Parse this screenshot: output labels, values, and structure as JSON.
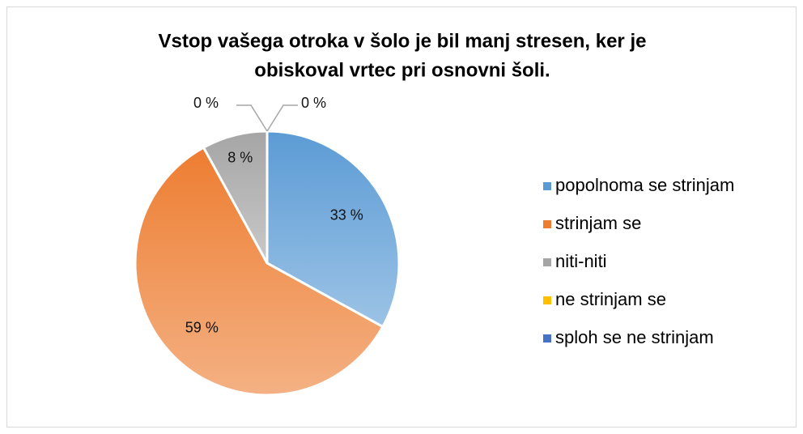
{
  "chart_data": {
    "type": "pie",
    "title": [
      "Vstop vašega otroka v šolo je bil manj stresen, ker je",
      "obiskoval vrtec pri osnovni šoli."
    ],
    "categories": [
      "popolnoma se strinjam",
      "strinjam se",
      "niti-niti",
      "ne strinjam se",
      "sploh se ne strinjam"
    ],
    "values": [
      33,
      59,
      8,
      0,
      0
    ],
    "value_labels": [
      "33 %",
      "59 %",
      "8 %",
      "0 %",
      "0 %"
    ],
    "colors": [
      "#5b9bd5",
      "#ed7d31",
      "#a5a5a5",
      "#ffc000",
      "#4472c4"
    ],
    "legend": "right"
  }
}
